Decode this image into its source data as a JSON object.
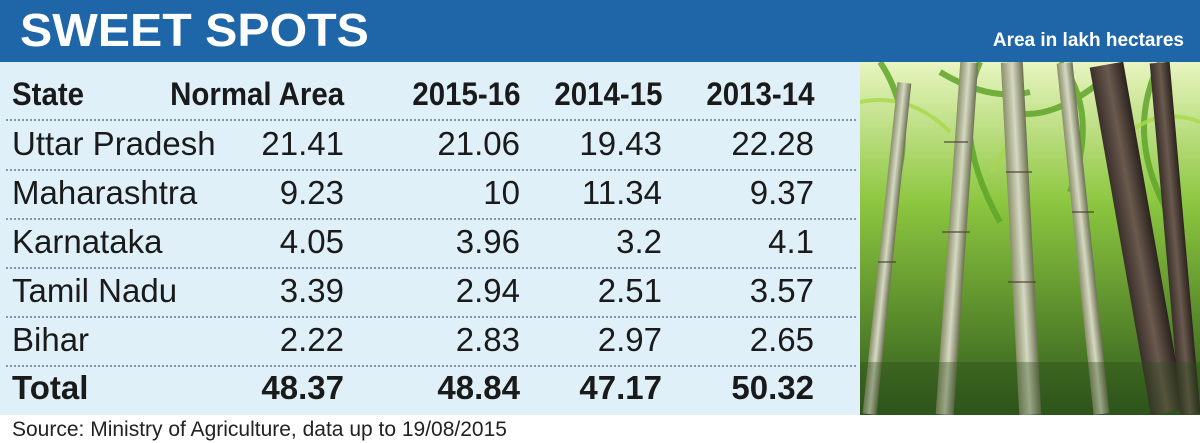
{
  "title": "SWEET SPOTS",
  "unit_note": "Area in lakh hectares",
  "chart_data": {
    "type": "table",
    "title": "SWEET SPOTS",
    "columns": [
      "State",
      "Normal Area",
      "2015-16",
      "2014-15",
      "2013-14"
    ],
    "rows": [
      {
        "state": "Uttar Pradesh",
        "values": [
          "21.41",
          "21.06",
          "19.43",
          "22.28"
        ]
      },
      {
        "state": "Maharashtra",
        "values": [
          "9.23",
          "10",
          "11.34",
          "9.37"
        ]
      },
      {
        "state": "Karnataka",
        "values": [
          "4.05",
          "3.96",
          "3.2",
          "4.1"
        ]
      },
      {
        "state": "Tamil Nadu",
        "values": [
          "3.39",
          "2.94",
          "2.51",
          "3.57"
        ]
      },
      {
        "state": "Bihar",
        "values": [
          "2.22",
          "2.83",
          "2.97",
          "2.65"
        ]
      }
    ],
    "total": {
      "label": "Total",
      "values": [
        "48.37",
        "48.84",
        "47.17",
        "50.32"
      ]
    },
    "unit": "Area in lakh hectares"
  },
  "source": "Source: Ministry of Agriculture, data up to 19/08/2015",
  "colors": {
    "header_bg": "#1f66a8",
    "table_bg": "#dff0f9"
  }
}
